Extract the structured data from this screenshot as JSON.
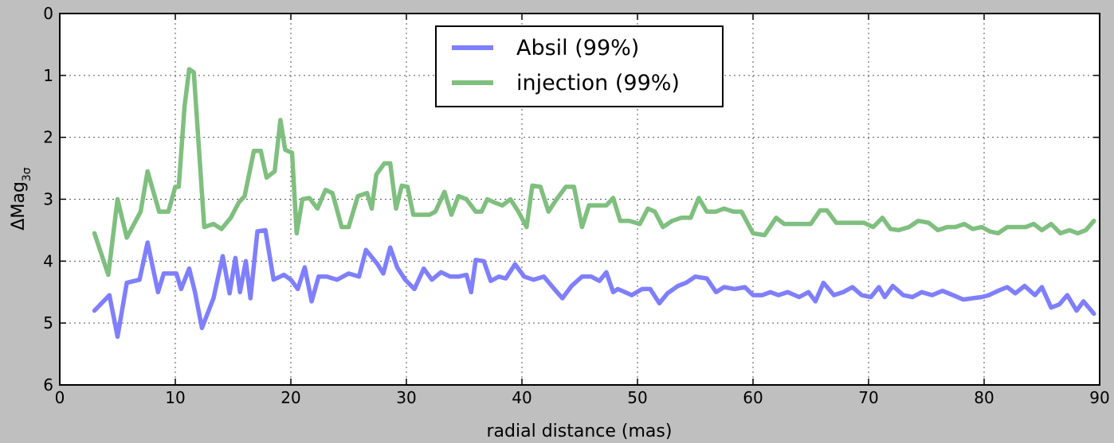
{
  "chart_data": {
    "type": "line",
    "title": "",
    "xlabel": "radial distance (mas)",
    "ylabel": "ΔMag",
    "ylabel_subscript": "3σ",
    "xlim": [
      0,
      90
    ],
    "ylim": [
      6,
      0
    ],
    "y_inverted": true,
    "grid": true,
    "legend_position": "top-center",
    "xticks": [
      0,
      10,
      20,
      30,
      40,
      50,
      60,
      70,
      80,
      90
    ],
    "yticks": [
      0,
      1,
      2,
      3,
      4,
      5,
      6
    ],
    "series": [
      {
        "name": "Absil (99%)",
        "color": "#7f7ffe",
        "x": [
          3.0,
          4.3,
          5.0,
          5.8,
          6.9,
          7.6,
          8.5,
          9.0,
          10.1,
          10.5,
          11.2,
          11.7,
          12.3,
          13.3,
          14.1,
          14.7,
          15.2,
          15.6,
          16.1,
          16.5,
          17.1,
          17.8,
          18.5,
          19.4,
          20.0,
          20.6,
          21.2,
          21.8,
          22.4,
          23.1,
          24.0,
          25.0,
          25.9,
          26.5,
          27.5,
          28.0,
          28.6,
          29.2,
          29.9,
          30.7,
          31.5,
          32.2,
          33.0,
          33.8,
          34.5,
          35.2,
          35.6,
          36.0,
          36.7,
          37.3,
          38.0,
          38.6,
          39.4,
          40.2,
          41.0,
          41.9,
          42.8,
          43.5,
          44.3,
          45.2,
          46.0,
          46.7,
          47.3,
          47.9,
          48.3,
          49.5,
          50.4,
          51.1,
          51.9,
          52.6,
          53.5,
          54.2,
          55.0,
          56.0,
          56.8,
          57.5,
          58.4,
          59.3,
          60.0,
          60.8,
          61.5,
          62.2,
          63.0,
          64.0,
          64.8,
          65.4,
          66.1,
          67.0,
          67.8,
          68.6,
          69.4,
          70.2,
          70.9,
          71.4,
          72.1,
          73.0,
          73.8,
          74.6,
          75.5,
          76.4,
          77.3,
          78.2,
          79.0,
          79.8,
          80.4,
          81.2,
          82.0,
          82.7,
          83.5,
          84.4,
          85.0,
          85.8,
          86.5,
          87.2,
          88.0,
          88.6,
          89.5
        ],
        "values": [
          4.8,
          4.55,
          5.22,
          4.35,
          4.3,
          3.7,
          4.5,
          4.2,
          4.2,
          4.45,
          4.12,
          4.5,
          5.08,
          4.6,
          3.92,
          4.52,
          3.95,
          4.5,
          4.0,
          4.6,
          3.52,
          3.5,
          4.3,
          4.22,
          4.3,
          4.45,
          4.1,
          4.65,
          4.25,
          4.25,
          4.3,
          4.2,
          4.25,
          3.82,
          4.05,
          4.2,
          3.78,
          4.1,
          4.3,
          4.45,
          4.12,
          4.3,
          4.18,
          4.25,
          4.25,
          4.22,
          4.5,
          3.98,
          4.0,
          4.32,
          4.25,
          4.28,
          4.05,
          4.25,
          4.3,
          4.25,
          4.45,
          4.6,
          4.4,
          4.25,
          4.25,
          4.32,
          4.18,
          4.5,
          4.45,
          4.55,
          4.45,
          4.45,
          4.68,
          4.52,
          4.4,
          4.35,
          4.25,
          4.28,
          4.5,
          4.42,
          4.45,
          4.42,
          4.55,
          4.55,
          4.5,
          4.55,
          4.5,
          4.58,
          4.5,
          4.65,
          4.35,
          4.55,
          4.5,
          4.42,
          4.55,
          4.58,
          4.42,
          4.58,
          4.4,
          4.55,
          4.58,
          4.5,
          4.55,
          4.48,
          4.55,
          4.62,
          4.6,
          4.58,
          4.55,
          4.48,
          4.42,
          4.52,
          4.4,
          4.55,
          4.42,
          4.75,
          4.7,
          4.55,
          4.8,
          4.65,
          4.85
        ]
      },
      {
        "name": "injection (99%)",
        "color": "#7fbf7f",
        "x": [
          3.0,
          4.2,
          5.0,
          5.8,
          7.0,
          7.6,
          8.6,
          9.4,
          10.0,
          10.3,
          10.8,
          11.2,
          11.6,
          12.5,
          13.3,
          14.0,
          14.8,
          15.5,
          16.0,
          16.8,
          17.4,
          17.9,
          18.6,
          19.1,
          19.5,
          20.1,
          20.5,
          21.0,
          21.6,
          22.3,
          23.0,
          23.6,
          24.4,
          25.0,
          25.8,
          26.6,
          27.0,
          27.4,
          28.1,
          28.6,
          29.1,
          29.6,
          30.1,
          30.6,
          31.5,
          32.0,
          32.5,
          33.3,
          33.9,
          34.5,
          35.2,
          36.0,
          36.5,
          37.0,
          37.6,
          38.3,
          39.0,
          39.7,
          40.4,
          40.9,
          41.6,
          42.3,
          43.0,
          43.8,
          44.5,
          45.2,
          45.8,
          46.6,
          47.3,
          47.9,
          48.5,
          49.3,
          50.2,
          50.9,
          51.5,
          52.2,
          53.0,
          53.8,
          54.6,
          55.3,
          56.0,
          56.8,
          57.5,
          58.3,
          59.0,
          60.0,
          61.0,
          62.0,
          62.7,
          63.4,
          64.2,
          65.0,
          65.8,
          66.4,
          67.2,
          68.0,
          68.8,
          69.6,
          70.4,
          71.2,
          71.9,
          72.6,
          73.5,
          74.3,
          75.2,
          76.0,
          76.8,
          77.5,
          78.3,
          79.0,
          79.8,
          80.5,
          81.2,
          82.0,
          82.8,
          83.6,
          84.3,
          85.0,
          85.8,
          86.6,
          87.4,
          88.1,
          88.8,
          89.5
        ],
        "values": [
          3.55,
          4.22,
          3.0,
          3.62,
          3.2,
          2.55,
          3.2,
          3.2,
          2.8,
          2.8,
          1.5,
          0.9,
          0.95,
          3.45,
          3.4,
          3.48,
          3.3,
          3.05,
          2.95,
          2.22,
          2.22,
          2.65,
          2.55,
          1.72,
          2.2,
          2.25,
          3.55,
          3.0,
          2.98,
          3.15,
          2.85,
          2.9,
          3.45,
          3.45,
          2.95,
          2.9,
          3.15,
          2.6,
          2.42,
          2.42,
          3.15,
          2.78,
          2.8,
          3.25,
          3.25,
          3.25,
          3.2,
          2.88,
          3.25,
          2.95,
          3.0,
          3.2,
          3.2,
          3.0,
          3.05,
          3.1,
          3.0,
          3.2,
          3.45,
          2.78,
          2.8,
          3.2,
          3.0,
          2.8,
          2.8,
          3.45,
          3.1,
          3.1,
          3.1,
          2.98,
          3.35,
          3.35,
          3.4,
          3.15,
          3.2,
          3.45,
          3.35,
          3.3,
          3.3,
          2.98,
          3.2,
          3.2,
          3.15,
          3.2,
          3.2,
          3.55,
          3.58,
          3.3,
          3.4,
          3.4,
          3.4,
          3.4,
          3.18,
          3.18,
          3.38,
          3.38,
          3.38,
          3.38,
          3.45,
          3.3,
          3.48,
          3.5,
          3.45,
          3.35,
          3.38,
          3.5,
          3.45,
          3.45,
          3.4,
          3.48,
          3.45,
          3.52,
          3.55,
          3.45,
          3.45,
          3.45,
          3.4,
          3.5,
          3.4,
          3.55,
          3.5,
          3.55,
          3.5,
          3.35
        ]
      }
    ]
  }
}
